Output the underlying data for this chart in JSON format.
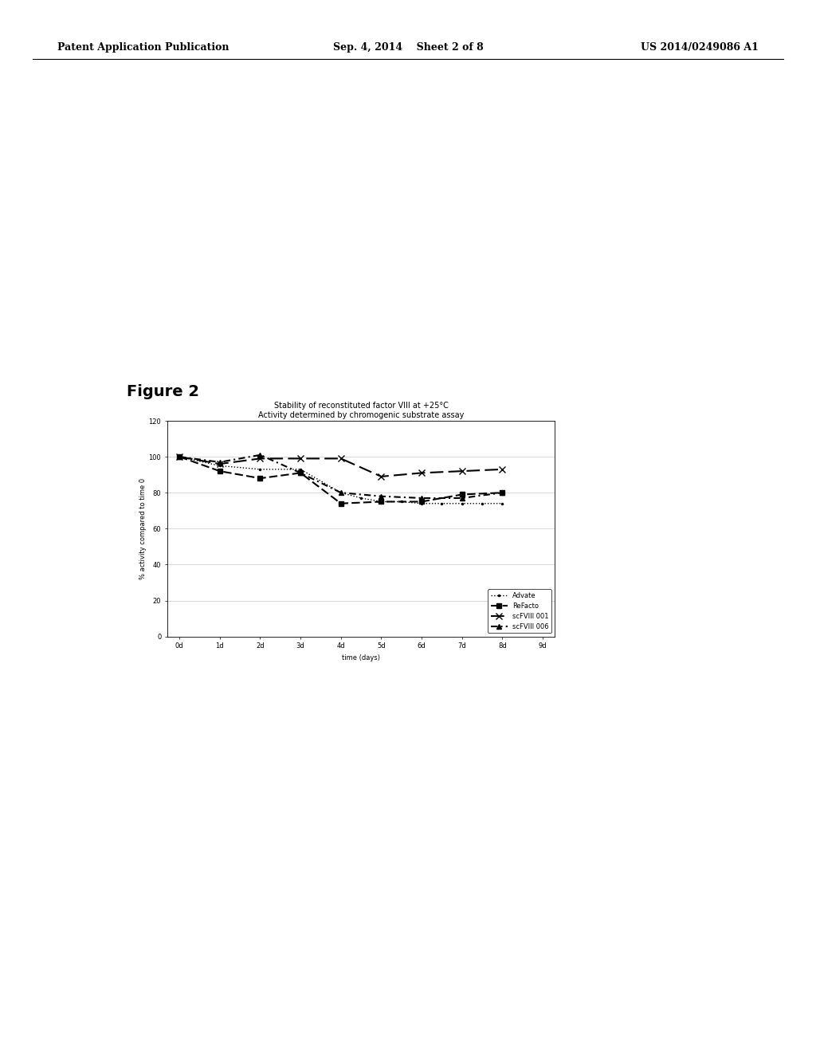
{
  "title_line1": "Stability of reconstituted factor VIII at +25°C",
  "title_line2": "Activity determined by chromogenic substrate assay",
  "xlabel": "time (days)",
  "ylabel": "% activity compared to time 0",
  "xlim": [
    -0.3,
    9.3
  ],
  "ylim": [
    0,
    120
  ],
  "xticks": [
    0,
    1,
    2,
    3,
    4,
    5,
    6,
    7,
    8,
    9
  ],
  "xticklabels": [
    "0d",
    "1d",
    "2d",
    "3d",
    "4d",
    "5d",
    "6d",
    "7d",
    "8d",
    "9d"
  ],
  "yticks": [
    0,
    20,
    40,
    60,
    80,
    100,
    120
  ],
  "series": {
    "Advate": {
      "x": [
        0,
        1,
        2,
        3,
        4,
        4.5,
        5,
        5.5,
        6,
        6.5,
        7,
        7.5,
        8
      ],
      "y": [
        100,
        95,
        93,
        93,
        80,
        77,
        75,
        75,
        74,
        74,
        74,
        74,
        74
      ],
      "linestyle": "dotted",
      "marker": ".",
      "markersize": 3,
      "color": "#000000",
      "linewidth": 1.0
    },
    "ReFacto": {
      "x": [
        0,
        1,
        2,
        3,
        4,
        5,
        6,
        7,
        8
      ],
      "y": [
        100,
        92,
        88,
        91,
        74,
        75,
        75,
        79,
        80
      ],
      "marker": "s",
      "markersize": 4,
      "color": "#000000",
      "linewidth": 1.5,
      "dashes": [
        5,
        2
      ]
    },
    "scFVIII001": {
      "x": [
        0,
        1,
        2,
        3,
        4,
        5,
        6,
        7,
        8
      ],
      "y": [
        100,
        96,
        99,
        99,
        99,
        89,
        91,
        92,
        93
      ],
      "marker": "x",
      "markersize": 6,
      "color": "#000000",
      "linewidth": 1.5,
      "dashes": [
        8,
        3
      ]
    },
    "scFVIII006": {
      "x": [
        0,
        1,
        2,
        3,
        4,
        5,
        6,
        7,
        8
      ],
      "y": [
        100,
        97,
        101,
        91,
        80,
        78,
        77,
        77,
        80
      ],
      "marker": "^",
      "markersize": 4,
      "color": "#000000",
      "linewidth": 1.5,
      "dashes": [
        4,
        2,
        1,
        2
      ]
    }
  },
  "figure_label": "Figure 2",
  "header_left": "Patent Application Publication",
  "header_center": "Sep. 4, 2014    Sheet 2 of 8",
  "header_right": "US 2014/0249086 A1",
  "background_color": "#ffffff",
  "title_fontsize": 7,
  "axis_fontsize": 6,
  "tick_fontsize": 6,
  "legend_fontsize": 6,
  "figure_label_fontsize": 14,
  "header_fontsize": 9
}
